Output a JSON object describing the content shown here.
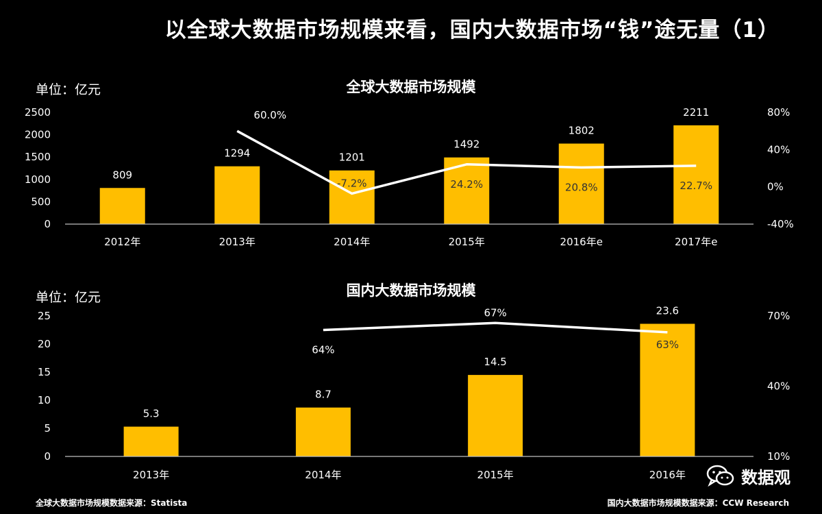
{
  "title": "以全球大数据市场规模来看，国内大数据市场“钱”途无量（1）",
  "footer": {
    "left": "全球大数据市场规模数据来源：Statista",
    "right": "国内大数据市场规模数据来源：CCW Research"
  },
  "watermark": {
    "text": "数据观",
    "icon": "wechat-icon"
  },
  "colors": {
    "bar": "#FFBE00",
    "line": "#FFFFFF",
    "background": "#000000",
    "axis": "#BFBFBF"
  },
  "chart_data": [
    {
      "type": "bar",
      "title": "全球大数据市场规模",
      "unit_label": "单位：亿元",
      "categories": [
        "2012年",
        "2013年",
        "2014年",
        "2015年",
        "2016年e",
        "2017年e"
      ],
      "values": [
        809,
        1294,
        1201,
        1492,
        1802,
        2211
      ],
      "value_labels": [
        "809",
        "1294",
        "1201",
        "1492",
        "1802",
        "2211"
      ],
      "ylim": [
        0,
        2500
      ],
      "yticks": [
        0,
        500,
        1000,
        1500,
        2000,
        2500
      ],
      "ytick_labels": [
        "0",
        "500",
        "1000",
        "1500",
        "2000",
        "2500"
      ],
      "secondary": {
        "type": "line",
        "values": [
          null,
          60.0,
          -7.2,
          24.2,
          20.8,
          22.7
        ],
        "value_labels": [
          "",
          "60.0%",
          "-7.2%",
          "24.2%",
          "20.8%",
          "22.7%"
        ],
        "ylim": [
          -40,
          80
        ],
        "yticks": [
          -40,
          0,
          40,
          80
        ],
        "ytick_labels": [
          "-40%",
          "0%",
          "40%",
          "80%"
        ]
      }
    },
    {
      "type": "bar",
      "title": "国内大数据市场规模",
      "unit_label": "单位：亿元",
      "categories": [
        "2013年",
        "2014年",
        "2015年",
        "2016年"
      ],
      "values": [
        5.3,
        8.7,
        14.5,
        23.6
      ],
      "value_labels": [
        "5.3",
        "8.7",
        "14.5",
        "23.6"
      ],
      "ylim": [
        0,
        25
      ],
      "yticks": [
        0,
        5,
        10,
        15,
        20,
        25
      ],
      "ytick_labels": [
        "0",
        "5",
        "10",
        "15",
        "20",
        "25"
      ],
      "secondary": {
        "type": "line",
        "values": [
          null,
          64,
          67,
          63
        ],
        "value_labels": [
          "",
          "64%",
          "67%",
          "63%"
        ],
        "ylim": [
          10,
          70
        ],
        "yticks": [
          10,
          40,
          70
        ],
        "ytick_labels": [
          "10%",
          "40%",
          "70%"
        ]
      }
    }
  ]
}
